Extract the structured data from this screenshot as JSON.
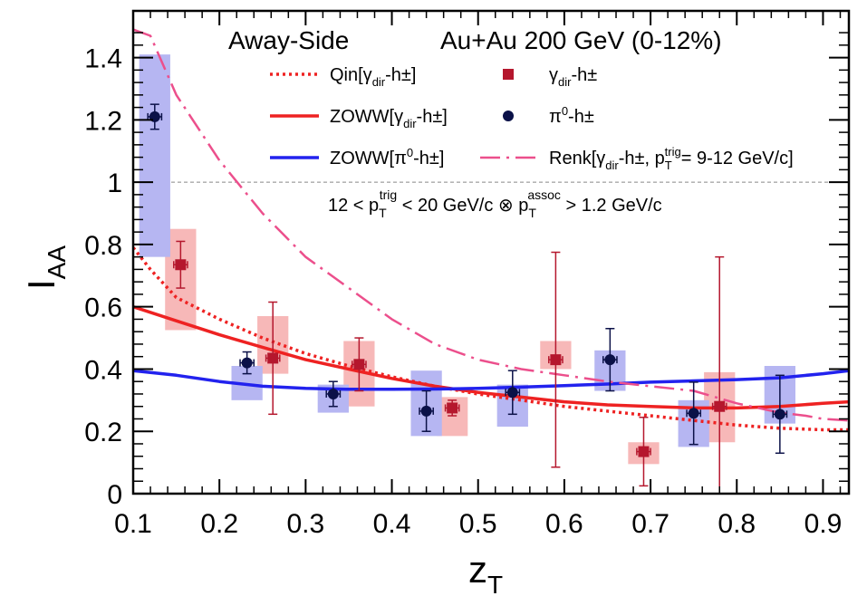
{
  "chart_data": {
    "type": "scatter",
    "title": "",
    "header_left": "Away-Side",
    "header_right": "Au+Au 200 GeV (0-12%)",
    "condition": {
      "prefix": "12 < p",
      "sub1": "T",
      "sup1": "trig",
      "middle": " < 20 GeV/c ⊗ p",
      "sub2": "T",
      "sup2": "assoc",
      "suffix": " > 1.2 GeV/c"
    },
    "xlabel": {
      "main": "z",
      "sub": "T"
    },
    "ylabel": {
      "main": "I",
      "sub": "AA"
    },
    "xlim": [
      0.1,
      0.93
    ],
    "ylim": [
      0,
      1.55
    ],
    "xticks": [
      0.1,
      0.2,
      0.3,
      0.4,
      0.5,
      0.6,
      0.7,
      0.8,
      0.9
    ],
    "xtick_labels": [
      "0.1",
      "0.2",
      "0.3",
      "0.4",
      "0.5",
      "0.6",
      "0.7",
      "0.8",
      "0.9"
    ],
    "yticks": [
      0,
      0.2,
      0.4,
      0.6,
      0.8,
      1,
      1.2,
      1.4
    ],
    "ytick_labels": [
      "0",
      "0.2",
      "0.4",
      "0.6",
      "0.8",
      "1",
      "1.2",
      "1.4"
    ],
    "reference_line": 1,
    "colors": {
      "gamma": "#b5172d",
      "gamma_box": "#f7b8b8",
      "pi0": "#0b1148",
      "pi0_box": "#b6b6f2",
      "qin": "#ee2222",
      "zoww_gamma": "#ee2222",
      "zoww_pi0": "#2222ee",
      "renk": "#ec4f8c",
      "reference": "#888888"
    },
    "legend": [
      {
        "key": "qin",
        "text": "Qin[γ",
        "sub": "dir",
        "rest": "-h±]"
      },
      {
        "key": "gamma",
        "text": "γ",
        "sub": "dir",
        "rest": "-h±"
      },
      {
        "key": "zoww_gamma",
        "text": "ZOWW[γ",
        "sub": "dir",
        "rest": "-h±]"
      },
      {
        "key": "pi0",
        "text": "π",
        "sup": "0",
        "rest": "-h±"
      },
      {
        "key": "zoww_pi0",
        "text": "ZOWW[π",
        "sup": "0",
        "rest": "-h±]"
      },
      {
        "key": "renk",
        "text": "Renk[γ",
        "sub": "dir",
        "rest": "-h±, p",
        "sub2": "T",
        "sup2": "trig",
        "rest2": "= 9-12 GeV/c]"
      }
    ],
    "series": [
      {
        "name": "γdir-h±",
        "marker": "square",
        "points": [
          {
            "x": 0.155,
            "y": 0.735,
            "yerr_lo": 0.075,
            "yerr_hi": 0.075,
            "xerr": 0.008,
            "sys_lo": 0.525,
            "sys_hi": 0.85
          },
          {
            "x": 0.262,
            "y": 0.435,
            "yerr_lo": 0.18,
            "yerr_hi": 0.18,
            "xerr": 0.008,
            "sys_lo": 0.385,
            "sys_hi": 0.57
          },
          {
            "x": 0.362,
            "y": 0.415,
            "yerr_lo": 0.085,
            "yerr_hi": 0.085,
            "xerr": 0.008,
            "sys_lo": 0.28,
            "sys_hi": 0.49
          },
          {
            "x": 0.47,
            "y": 0.275,
            "yerr_lo": 0.025,
            "yerr_hi": 0.025,
            "xerr": 0.008,
            "sys_lo": 0.185,
            "sys_hi": 0.31
          },
          {
            "x": 0.59,
            "y": 0.43,
            "yerr_lo": 0.345,
            "yerr_hi": 0.345,
            "xerr": 0.008,
            "sys_lo": 0.4,
            "sys_hi": 0.49
          },
          {
            "x": 0.692,
            "y": 0.135,
            "yerr_lo": 0.11,
            "yerr_hi": 0.11,
            "xerr": 0.008,
            "sys_lo": 0.095,
            "sys_hi": 0.165
          },
          {
            "x": 0.78,
            "y": 0.28,
            "yerr_lo": 0.31,
            "yerr_hi": 0.48,
            "xerr": 0.008,
            "sys_lo": 0.165,
            "sys_hi": 0.39
          }
        ]
      },
      {
        "name": "π0-h±",
        "marker": "circle",
        "points": [
          {
            "x": 0.125,
            "y": 1.21,
            "yerr_lo": 0.04,
            "yerr_hi": 0.04,
            "xerr": 0.008,
            "sys_lo": 0.76,
            "sys_hi": 1.41
          },
          {
            "x": 0.232,
            "y": 0.42,
            "yerr_lo": 0.035,
            "yerr_hi": 0.035,
            "xerr": 0.008,
            "sys_lo": 0.3,
            "sys_hi": 0.41
          },
          {
            "x": 0.332,
            "y": 0.32,
            "yerr_lo": 0.04,
            "yerr_hi": 0.04,
            "xerr": 0.008,
            "sys_lo": 0.26,
            "sys_hi": 0.35
          },
          {
            "x": 0.44,
            "y": 0.265,
            "yerr_lo": 0.065,
            "yerr_hi": 0.065,
            "xerr": 0.008,
            "sys_lo": 0.185,
            "sys_hi": 0.395
          },
          {
            "x": 0.54,
            "y": 0.325,
            "yerr_lo": 0.07,
            "yerr_hi": 0.07,
            "xerr": 0.008,
            "sys_lo": 0.215,
            "sys_hi": 0.35
          },
          {
            "x": 0.653,
            "y": 0.43,
            "yerr_lo": 0.1,
            "yerr_hi": 0.1,
            "xerr": 0.008,
            "sys_lo": 0.33,
            "sys_hi": 0.46
          },
          {
            "x": 0.75,
            "y": 0.258,
            "yerr_lo": 0.1,
            "yerr_hi": 0.1,
            "xerr": 0.008,
            "sys_lo": 0.15,
            "sys_hi": 0.3
          },
          {
            "x": 0.85,
            "y": 0.255,
            "yerr_lo": 0.125,
            "yerr_hi": 0.125,
            "xerr": 0.008,
            "sys_lo": 0.225,
            "sys_hi": 0.41
          }
        ]
      }
    ],
    "curves": [
      {
        "key": "qin",
        "style": "dotted",
        "name": "Qin[γdir-h±]",
        "x": [
          0.1,
          0.12,
          0.15,
          0.2,
          0.25,
          0.3,
          0.35,
          0.4,
          0.45,
          0.5,
          0.55,
          0.6,
          0.65,
          0.7,
          0.75,
          0.8,
          0.85,
          0.9,
          0.93
        ],
        "y": [
          0.79,
          0.72,
          0.63,
          0.56,
          0.5,
          0.45,
          0.41,
          0.375,
          0.345,
          0.32,
          0.3,
          0.28,
          0.265,
          0.25,
          0.235,
          0.22,
          0.21,
          0.205,
          0.205
        ]
      },
      {
        "key": "zoww_gamma",
        "style": "solid",
        "name": "ZOWW[γdir-h±]",
        "x": [
          0.1,
          0.15,
          0.2,
          0.25,
          0.3,
          0.35,
          0.4,
          0.45,
          0.5,
          0.55,
          0.6,
          0.65,
          0.7,
          0.75,
          0.8,
          0.85,
          0.9,
          0.93
        ],
        "y": [
          0.6,
          0.555,
          0.51,
          0.47,
          0.43,
          0.4,
          0.37,
          0.345,
          0.325,
          0.31,
          0.295,
          0.285,
          0.28,
          0.275,
          0.275,
          0.28,
          0.29,
          0.295
        ]
      },
      {
        "key": "zoww_pi0",
        "style": "solid",
        "name": "ZOWW[π0-h±]",
        "x": [
          0.1,
          0.15,
          0.2,
          0.25,
          0.3,
          0.35,
          0.4,
          0.45,
          0.5,
          0.55,
          0.6,
          0.65,
          0.7,
          0.75,
          0.8,
          0.85,
          0.9,
          0.93
        ],
        "y": [
          0.395,
          0.38,
          0.36,
          0.345,
          0.338,
          0.335,
          0.335,
          0.336,
          0.338,
          0.342,
          0.347,
          0.352,
          0.358,
          0.362,
          0.366,
          0.372,
          0.385,
          0.395
        ]
      },
      {
        "key": "renk",
        "style": "dashdot",
        "name": "Renk[γdir-h±, pTtrig= 9-12 GeV/c]",
        "x": [
          0.1,
          0.12,
          0.15,
          0.2,
          0.25,
          0.3,
          0.35,
          0.4,
          0.45,
          0.5,
          0.55,
          0.6,
          0.65,
          0.7,
          0.75,
          0.8,
          0.85,
          0.88,
          0.9,
          0.93
        ],
        "y": [
          1.49,
          1.47,
          1.28,
          1.07,
          0.9,
          0.76,
          0.66,
          0.56,
          0.48,
          0.43,
          0.4,
          0.38,
          0.36,
          0.345,
          0.33,
          0.29,
          0.26,
          0.25,
          0.24,
          0.235
        ]
      }
    ]
  }
}
